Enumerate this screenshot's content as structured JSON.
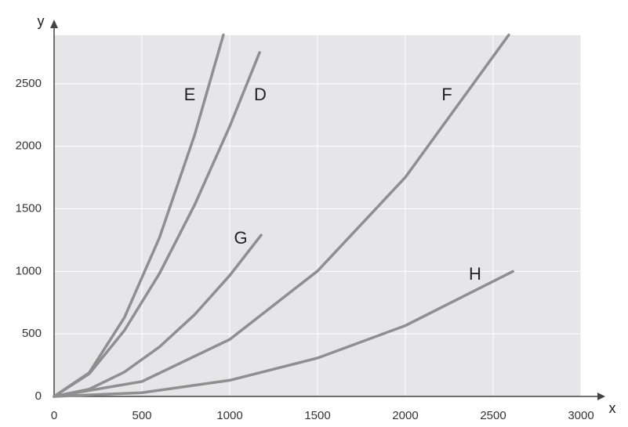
{
  "chart_data": {
    "type": "line",
    "xlabel": "x",
    "ylabel": "y",
    "xlim": [
      0,
      3000
    ],
    "ylim": [
      0,
      2890
    ],
    "xticks": [
      0,
      500,
      1000,
      1500,
      2000,
      2500,
      3000
    ],
    "yticks": [
      0,
      500,
      1000,
      1500,
      2000,
      2500
    ],
    "grid": true,
    "series": [
      {
        "name": "E",
        "color": "#8f8f8f",
        "x": [
          0,
          200,
          400,
          600,
          800,
          964
        ],
        "values": [
          0,
          190,
          630,
          1270,
          2090,
          2890
        ]
      },
      {
        "name": "D",
        "color": "#8f8f8f",
        "x": [
          0,
          200,
          400,
          600,
          800,
          1000,
          1170
        ],
        "values": [
          0,
          181,
          527,
          983,
          1531,
          2159,
          2750
        ]
      },
      {
        "name": "G",
        "color": "#8f8f8f",
        "x": [
          0,
          200,
          400,
          600,
          800,
          1000,
          1179
        ],
        "values": [
          0,
          58,
          195,
          396,
          654,
          967,
          1290
        ]
      },
      {
        "name": "F",
        "color": "#8f8f8f",
        "x": [
          0,
          500,
          1000,
          1500,
          2000,
          2589
        ],
        "values": [
          0,
          119,
          456,
          1003,
          1752,
          2890
        ]
      },
      {
        "name": "H",
        "color": "#8f8f8f",
        "x": [
          0,
          500,
          1000,
          1500,
          2000,
          2612
        ],
        "values": [
          0,
          30,
          129,
          307,
          566,
          1000
        ]
      }
    ]
  }
}
